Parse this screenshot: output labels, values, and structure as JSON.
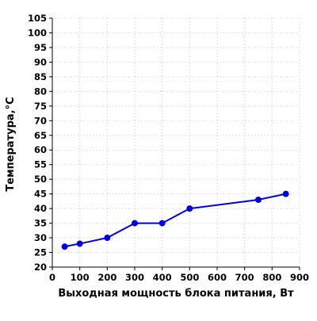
{
  "chart_data": {
    "type": "line",
    "title": "",
    "xlabel": "Выходная мощность блока питания, Вт",
    "ylabel": "Температура,°C",
    "xlim": [
      0,
      900
    ],
    "ylim": [
      20,
      105
    ],
    "x_ticks": [
      0,
      100,
      200,
      300,
      400,
      500,
      600,
      700,
      800,
      900
    ],
    "y_ticks": [
      20,
      25,
      30,
      35,
      40,
      45,
      50,
      55,
      60,
      65,
      70,
      75,
      80,
      85,
      90,
      95,
      100,
      105
    ],
    "grid": true,
    "series": [
      {
        "color": "#0000dd",
        "x": [
          45,
          100,
          200,
          300,
          400,
          500,
          750,
          850
        ],
        "y": [
          27,
          28,
          30,
          35,
          35,
          40,
          43,
          45
        ]
      }
    ]
  }
}
